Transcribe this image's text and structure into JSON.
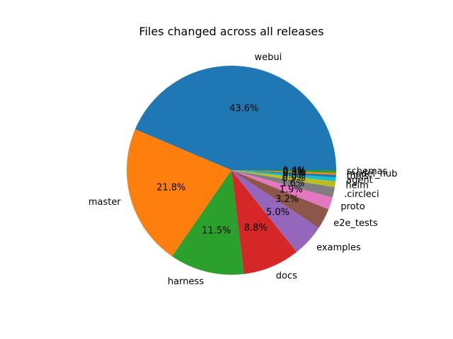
{
  "chart_data": {
    "type": "pie",
    "title": "Files changed across all releases",
    "start_angle": 0,
    "direction": "counterclockwise",
    "slices": [
      {
        "label": "webui",
        "pct": 43.6,
        "pct_label": "43.6%",
        "color": "#1f77b4"
      },
      {
        "label": "master",
        "pct": 21.8,
        "pct_label": "21.8%",
        "color": "#ff7f0e"
      },
      {
        "label": "harness",
        "pct": 11.5,
        "pct_label": "11.5%",
        "color": "#2ca02c"
      },
      {
        "label": "docs",
        "pct": 8.8,
        "pct_label": "8.8%",
        "color": "#d62728"
      },
      {
        "label": "examples",
        "pct": 5.0,
        "pct_label": "5.0%",
        "color": "#9467bd"
      },
      {
        "label": "e2e_tests",
        "pct": 3.2,
        "pct_label": "3.2%",
        "color": "#8c564b"
      },
      {
        "label": "proto",
        "pct": 1.9,
        "pct_label": "1.9%",
        "color": "#e377c2"
      },
      {
        "label": ".circleci",
        "pct": 1.6,
        "pct_label": "1.6%",
        "color": "#7f7f7f"
      },
      {
        "label": "helm",
        "pct": 0.9,
        "pct_label": "0.9%",
        "color": "#bcbd22"
      },
      {
        "label": "agent",
        "pct": 0.6,
        "pct_label": "0.6%",
        "color": "#17becf"
      },
      {
        "label": "tools",
        "pct": 0.4,
        "pct_label": "0.4%",
        "color": "#1f77b4"
      },
      {
        "label": "model_hub",
        "pct": 0.3,
        "pct_label": "0.3%",
        "color": "#ff7f0e"
      },
      {
        "label": "schemas",
        "pct": 0.4,
        "pct_label": "0.4%",
        "color": "#2ca02c"
      }
    ]
  }
}
